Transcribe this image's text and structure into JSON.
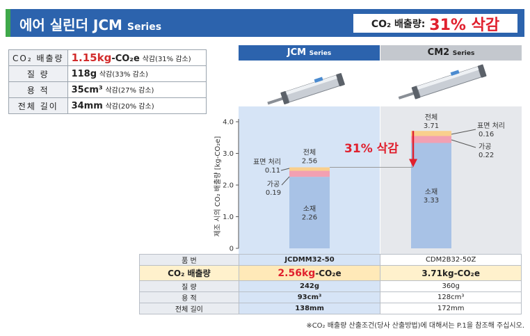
{
  "header": {
    "title": "에어 실린더 JCM",
    "series": "Series",
    "reduce_label": "CO₂ 배출량:",
    "reduce_value": "31% 삭감"
  },
  "spec_table": [
    {
      "key": "CO₂ 배출량",
      "value": "1.15kg",
      "value_extra": "-CO₂e",
      "note": "삭감(31% 감소)"
    },
    {
      "key": "질 량",
      "value": "118g",
      "value_extra": "",
      "note": "삭감(33% 감소)"
    },
    {
      "key": "용 적",
      "value": "35cm³",
      "value_extra": "",
      "note": "삭감(27% 감소)"
    },
    {
      "key": "전체 길이",
      "value": "34mm",
      "value_extra": "",
      "note": "삭감(20% 감소)"
    }
  ],
  "columns": [
    {
      "name": "JCM",
      "series": "Series"
    },
    {
      "name": "CM2",
      "series": "Series"
    }
  ],
  "colors": {
    "header_blue": "#2c63ad",
    "accent_green": "#3fa84a",
    "red": "#e0202e",
    "material": "#a8c2e6",
    "processing": "#f2a0b2",
    "surface": "#f9cf8d",
    "panel_jcm": "#d6e4f6",
    "panel_cm2": "#e6e8ec"
  },
  "chart_data": {
    "type": "bar",
    "stacked": true,
    "ylabel": "제조 시의 CO₂ 배출량 [kg-CO₂e]",
    "ylim": [
      0,
      4.0
    ],
    "yticks": [
      "0",
      "1.0",
      "2.0",
      "3.0",
      "4.0"
    ],
    "categories": [
      "JCM",
      "CM2"
    ],
    "series": [
      {
        "name": "소재",
        "values": [
          2.26,
          3.33
        ]
      },
      {
        "name": "가공",
        "values": [
          0.19,
          0.22
        ]
      },
      {
        "name": "표면 처리",
        "values": [
          0.11,
          0.16
        ]
      }
    ],
    "totals": [
      2.56,
      3.71
    ],
    "total_label": "전체",
    "annotation": "31% 삭감",
    "grid": false,
    "legend": "none"
  },
  "bottom_table": {
    "rows": [
      {
        "key": "품 번",
        "a": "JCDMM32-50",
        "b": "CDM2B32-50Z"
      },
      {
        "key": "CO₂ 배출량",
        "a": "2.56kg",
        "a_unit": "-CO₂e",
        "b": "3.71kg-CO₂e"
      },
      {
        "key": "질 량",
        "a": "242g",
        "b": "360g"
      },
      {
        "key": "용 적",
        "a": "93cm³",
        "b": "128cm³"
      },
      {
        "key": "전체 길이",
        "a": "138mm",
        "b": "172mm"
      }
    ]
  },
  "footnote": "※CO₂ 배출량 산출조건(당사 산출방법)에 대해서는 P.1을 참조해 주십시오."
}
